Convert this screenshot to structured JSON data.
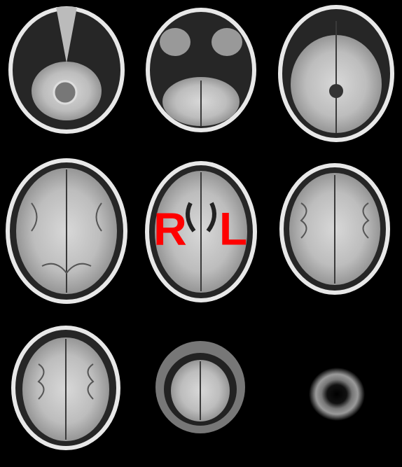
{
  "labels": [
    "R",
    "L"
  ]
}
